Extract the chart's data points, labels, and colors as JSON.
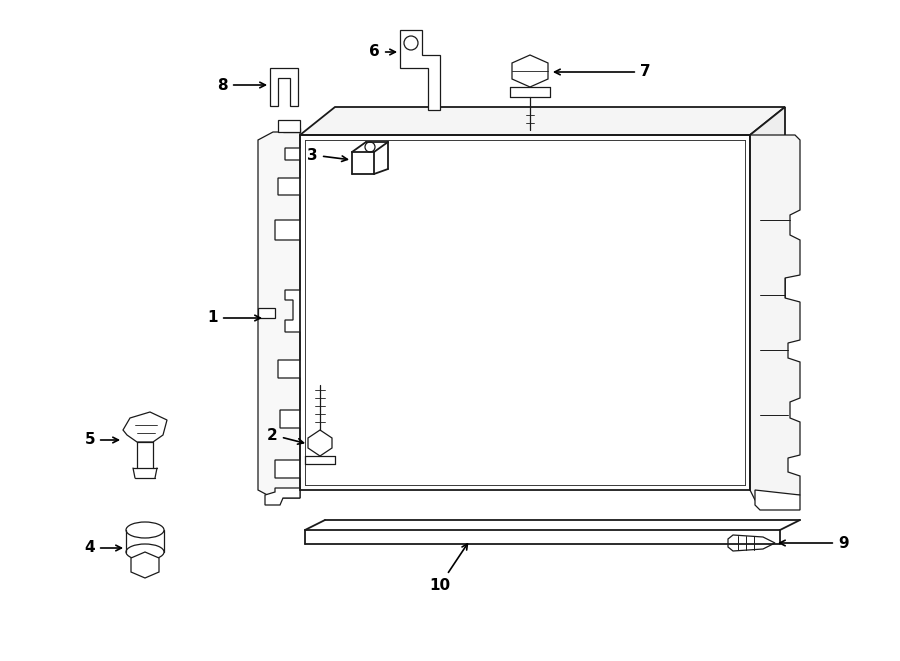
{
  "title": "",
  "bg_color": "#ffffff",
  "line_color": "#1a1a1a",
  "fig_width": 9.0,
  "fig_height": 6.61,
  "dpi": 100
}
